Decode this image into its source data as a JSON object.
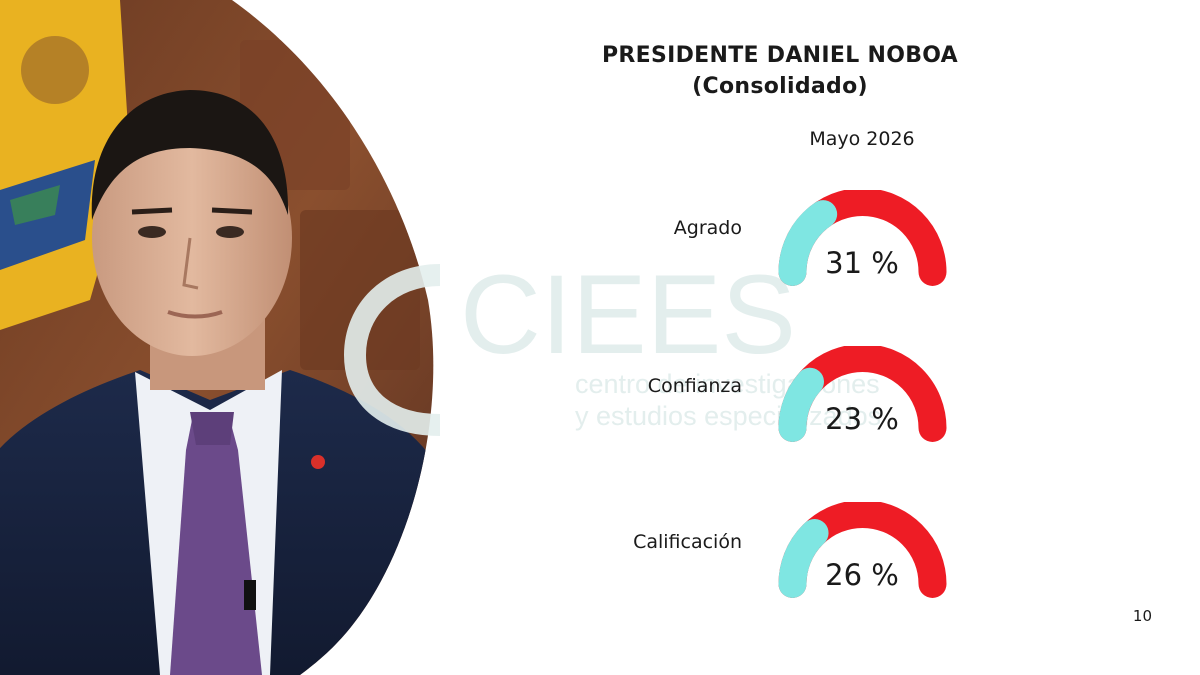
{
  "slide": {
    "title_line1": "PRESIDENTE DANIEL  NOBOA",
    "title_line2": "(Consolidado)",
    "period": "Mayo 2026",
    "page_number": "10",
    "watermark": {
      "name": "CIEES",
      "line1": "centro de investigaciones",
      "line2": "y estudios especializados"
    }
  },
  "colors": {
    "gauge_track": "#ee1c25",
    "gauge_fill": "#7fe6e2",
    "watermark": "#e3eeed"
  },
  "chart_data": {
    "type": "gauge",
    "title": "PRESIDENTE DANIEL  NOBOA (Consolidado)",
    "period": "Mayo 2026",
    "unit": "%",
    "max": 100,
    "items": [
      {
        "label": "Agrado",
        "value": 31,
        "display": "31 %"
      },
      {
        "label": "Confianza",
        "value": 23,
        "display": "23 %"
      },
      {
        "label": "Calificación",
        "value": 26,
        "display": "26 %"
      }
    ]
  }
}
